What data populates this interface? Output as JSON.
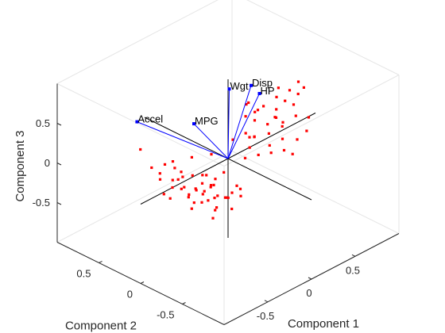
{
  "chart_data": {
    "type": "biplot3d",
    "title": "",
    "xlabel": "Component 1",
    "ylabel": "Component 2",
    "zlabel": "Component 3",
    "xlim": [
      -1,
      1
    ],
    "ylim": [
      -1,
      1
    ],
    "zlim": [
      -1,
      1
    ],
    "x_ticks": [
      {
        "value": -0.5,
        "label": "-0.5"
      },
      {
        "value": 0,
        "label": "0"
      },
      {
        "value": 0.5,
        "label": "0.5"
      }
    ],
    "y_ticks": [
      {
        "value": 0.5,
        "label": "0.5"
      },
      {
        "value": 0,
        "label": "0"
      },
      {
        "value": -0.5,
        "label": "-0.5"
      }
    ],
    "z_ticks": [
      {
        "value": 0.5,
        "label": "0.5"
      },
      {
        "value": 0,
        "label": "0"
      },
      {
        "value": -0.5,
        "label": "-0.5"
      }
    ],
    "grid": false,
    "vector_color": "#0000ff",
    "point_color": "#ff0000",
    "axis_line_color": "#000000",
    "box_color": "#e6e6e6",
    "loadings": [
      {
        "name": "Accel",
        "x": -0.45,
        "y": 0.62,
        "z": 0.4
      },
      {
        "name": "MPG",
        "x": -0.2,
        "y": 0.2,
        "z": 0.45
      },
      {
        "name": "Wgt",
        "x": 0.3,
        "y": 0.3,
        "z": 0.55
      },
      {
        "name": "Disp",
        "x": 0.55,
        "y": 0.3,
        "z": 0.45
      },
      {
        "name": "HP",
        "x": 0.55,
        "y": 0.2,
        "z": 0.4
      }
    ],
    "scores": [
      [
        -0.43,
        0.6,
        0.05
      ],
      [
        -0.28,
        0.25,
        -0.2
      ],
      [
        -0.35,
        0.45,
        -0.22
      ],
      [
        -0.2,
        0.1,
        -0.25
      ],
      [
        -0.25,
        0.3,
        -0.18
      ],
      [
        -0.3,
        0.35,
        -0.28
      ],
      [
        -0.15,
        0.05,
        -0.3
      ],
      [
        -0.18,
        0.2,
        -0.38
      ],
      [
        -0.22,
        0.15,
        -0.35
      ],
      [
        -0.12,
        0.0,
        -0.4
      ],
      [
        -0.1,
        0.1,
        -0.33
      ],
      [
        -0.08,
        -0.05,
        -0.42
      ],
      [
        -0.25,
        0.4,
        -0.1
      ],
      [
        -0.35,
        0.3,
        -0.32
      ],
      [
        -0.05,
        0.1,
        -0.28
      ],
      [
        -0.18,
        0.05,
        -0.45
      ],
      [
        -0.28,
        0.18,
        -0.42
      ],
      [
        -0.15,
        -0.02,
        -0.52
      ],
      [
        -0.08,
        0.2,
        -0.47
      ],
      [
        -0.32,
        0.1,
        -0.5
      ],
      [
        -0.05,
        -0.1,
        -0.35
      ],
      [
        -0.12,
        0.3,
        -0.3
      ],
      [
        -0.2,
        0.35,
        -0.45
      ],
      [
        -0.02,
        0.0,
        -0.48
      ],
      [
        -0.15,
        0.15,
        -0.2
      ],
      [
        -0.4,
        0.35,
        -0.4
      ],
      [
        -0.1,
        -0.15,
        -0.5
      ],
      [
        -0.3,
        0.5,
        -0.35
      ],
      [
        -0.22,
        -0.05,
        -0.6
      ],
      [
        -0.05,
        0.25,
        -0.55
      ],
      [
        -0.38,
        0.2,
        -0.15
      ],
      [
        -0.18,
        0.45,
        -0.25
      ],
      [
        -0.12,
        0.4,
        -0.5
      ],
      [
        -0.25,
        -0.1,
        -0.3
      ],
      [
        0.0,
        0.05,
        -0.2
      ],
      [
        -0.08,
        0.35,
        -0.12
      ],
      [
        -0.3,
        0.0,
        -0.38
      ],
      [
        -0.15,
        0.25,
        -0.6
      ],
      [
        -0.2,
        0.05,
        -0.12
      ],
      [
        -0.02,
        0.15,
        -0.4
      ],
      [
        -0.35,
        0.55,
        -0.2
      ],
      [
        -0.1,
        0.05,
        -0.62
      ],
      [
        -0.28,
        0.4,
        -0.55
      ],
      [
        -0.05,
        -0.2,
        -0.25
      ],
      [
        0.05,
        -0.1,
        -0.45
      ],
      [
        0.1,
        0.0,
        -0.4
      ],
      [
        0.0,
        0.2,
        -0.05
      ],
      [
        -0.15,
        0.6,
        -0.3
      ],
      [
        0.05,
        0.05,
        -0.55
      ],
      [
        -0.4,
        0.05,
        -0.25
      ],
      [
        0.3,
        0.0,
        0.1
      ],
      [
        0.35,
        0.05,
        0.05
      ],
      [
        0.4,
        0.1,
        0.2
      ],
      [
        0.42,
        -0.05,
        0.1
      ],
      [
        0.45,
        0.15,
        0.25
      ],
      [
        0.5,
        0.05,
        0.12
      ],
      [
        0.38,
        -0.1,
        0.0
      ],
      [
        0.55,
        0.0,
        0.2
      ],
      [
        0.48,
        -0.15,
        0.05
      ],
      [
        0.52,
        0.12,
        0.3
      ],
      [
        0.6,
        0.05,
        0.25
      ],
      [
        0.65,
        0.1,
        0.35
      ],
      [
        0.58,
        -0.05,
        0.15
      ],
      [
        0.62,
        0.0,
        0.05
      ],
      [
        0.45,
        -0.2,
        -0.05
      ],
      [
        0.7,
        0.05,
        0.3
      ],
      [
        0.68,
        -0.1,
        0.2
      ],
      [
        0.4,
        0.2,
        0.35
      ],
      [
        0.55,
        0.2,
        0.4
      ],
      [
        0.75,
        0.0,
        0.25
      ],
      [
        0.5,
        -0.25,
        -0.1
      ],
      [
        0.35,
        -0.15,
        -0.05
      ],
      [
        0.6,
        -0.2,
        0.0
      ],
      [
        0.72,
        0.15,
        0.4
      ],
      [
        0.8,
        0.1,
        0.35
      ],
      [
        0.3,
        -0.05,
        -0.1
      ],
      [
        0.44,
        0.25,
        0.15
      ],
      [
        0.25,
        0.05,
        0.15
      ],
      [
        0.2,
        -0.05,
        0.05
      ],
      [
        0.66,
        -0.25,
        0.1
      ],
      [
        0.85,
        0.05,
        0.3
      ],
      [
        0.78,
        -0.15,
        0.15
      ],
      [
        0.52,
        0.3,
        0.25
      ],
      [
        0.36,
        0.12,
        0.0
      ],
      [
        0.58,
        0.25,
        0.15
      ],
      [
        0.15,
        0.1,
        0.1
      ],
      [
        0.9,
        0.1,
        0.4
      ],
      [
        0.1,
        -0.1,
        0.0
      ],
      [
        0.82,
        -0.05,
        0.45
      ],
      [
        0.46,
        -0.08,
        0.3
      ]
    ]
  }
}
